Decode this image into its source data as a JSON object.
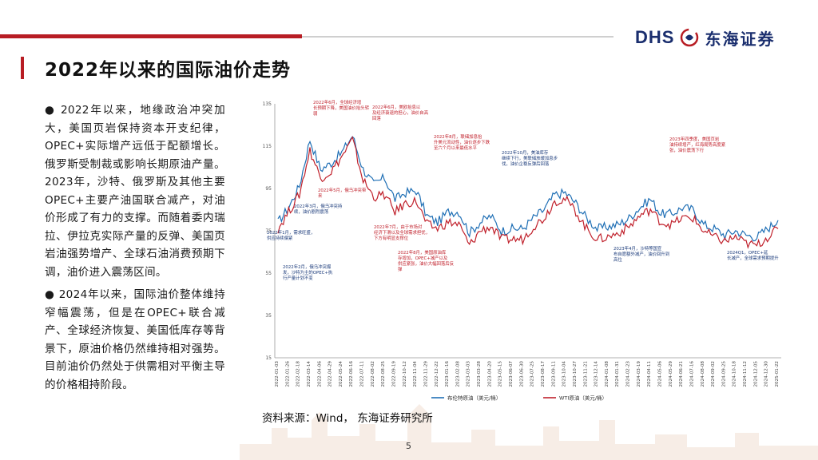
{
  "header": {
    "logo_latin": "DHS",
    "logo_cn": "东海证券",
    "colors": {
      "accent_red": "#b81d24",
      "brand_blue": "#1a2e6e"
    }
  },
  "page": {
    "title": "2022年以来的国际油价走势",
    "paragraph1": "●  2022年以来，地缘政治冲突加大，美国页岩保持资本开支纪律，OPEC+实际增产远低于配额增长。俄罗斯受制裁或影响长期原油产量。2023年，沙特、俄罗斯及其他主要OPEC+主要产油国联合减产，对油价形成了有力的支撑。而随着委内瑞拉、伊拉克实际产量的反弹、美国页岩油强势增产、全球石油消费预期下调，油价进入震荡区间。",
    "paragraph2": "●  2024年以来，国际油价整体维持窄幅震荡，但是在OPEC+联合减产、全球经济恢复、美国低库存等背景下，原油价格仍然维持相对强势。目前油价仍然处于供需相对平衡主导的价格相持阶段。",
    "source": "资料来源：Wind， 东海证券研究所",
    "page_number": "5"
  },
  "chart_data": {
    "type": "line",
    "y_ticks": [
      "135",
      "115",
      "95",
      "75",
      "55",
      "35",
      "15"
    ],
    "ylim": [
      15,
      135
    ],
    "x_tick_labels": [
      "2022-01-03",
      "2022-01-26",
      "2022-02-18",
      "2022-03-14",
      "2022-04-06",
      "2022-04-29",
      "2022-05-24",
      "2022-06-16",
      "2022-07-11",
      "2022-08-02",
      "2022-08-25",
      "2022-09-19",
      "2022-10-12",
      "2022-11-04",
      "2022-11-29",
      "2022-12-22",
      "2023-01-16",
      "2023-02-08",
      "2023-03-03",
      "2023-03-28",
      "2023-04-20",
      "2023-05-15",
      "2023-06-07",
      "2023-06-30",
      "2023-07-25",
      "2023-08-17",
      "2023-09-11",
      "2023-10-04",
      "2023-10-27",
      "2023-11-21",
      "2023-12-14",
      "2024-01-08",
      "2024-01-31",
      "2024-02-23",
      "2024-03-19",
      "2024-04-11",
      "2024-05-06",
      "2024-05-29",
      "2024-06-21",
      "2024-07-16",
      "2024-08-08",
      "2024-09-02",
      "2024-09-25",
      "2024-10-18",
      "2024-11-12",
      "2024-12-05",
      "2024-12-30",
      "2025-01-22"
    ],
    "series": [
      {
        "name": "布伦特原油（美元/桶）",
        "color": "#1f6fb5",
        "values": [
          79,
          86,
          96,
          118,
          104,
          107,
          112,
          120,
          104,
          97,
          100,
          90,
          93,
          94,
          82,
          79,
          84,
          84,
          74,
          79,
          82,
          75,
          76,
          76,
          81,
          85,
          92,
          93,
          88,
          81,
          76,
          77,
          78,
          81,
          86,
          90,
          83,
          83,
          86,
          85,
          78,
          76,
          73,
          75,
          73,
          72,
          76,
          80
        ]
      },
      {
        "name": "WTI原油（美元/桶）",
        "color": "#c0202b",
        "values": [
          76,
          84,
          92,
          113,
          100,
          103,
          110,
          118,
          99,
          91,
          92,
          84,
          88,
          89,
          78,
          76,
          79,
          78,
          68,
          75,
          77,
          71,
          71,
          71,
          77,
          81,
          89,
          90,
          84,
          76,
          71,
          72,
          74,
          77,
          82,
          85,
          79,
          78,
          81,
          81,
          75,
          72,
          70,
          72,
          69,
          68,
          72,
          76
        ]
      }
    ],
    "annotations": [
      "2022年6月，全球经济增长预期下降，美国油价抬头转弱",
      "2022年6月，美欧抬息以及经济衰退的担心，油价自高回落",
      "2022年5月，俄乌冲突带来",
      "2022年3月，俄乌冲突持续，油价剧烈震荡",
      "2022年1月，需求旺盛，供应持续偏紧",
      "2022年2月，俄乌冲突爆发，沙特为主的OPEC+执行产量计划不变",
      "2022年7月，由于市场对经济下滑以及全球需求担忧，下方有明显支撑位",
      "2022年8月，美国原油库存增加，OPEC+减产以及供应紧张，油价大幅回落后反弹",
      "2022年8月，联储加息抬升美元流动性，油价逐步下跌至六个月以来最低水平",
      "2022年10月，美油库存继续下行，美联储放缓加息步伐，油价企稳反弹后回落",
      "2023年4月，沙特等国宣布自愿额外减产，油价回升到高位",
      "2023年5月，沙特等国宣布额外减产，并且持续至12月，油价大幅上行",
      "2023年四季度，美国页岩油持续增产，红海局势高度紧张，油价震荡下行",
      "2024Q1，OPEC+延长减产，全球需求预期提升"
    ]
  }
}
